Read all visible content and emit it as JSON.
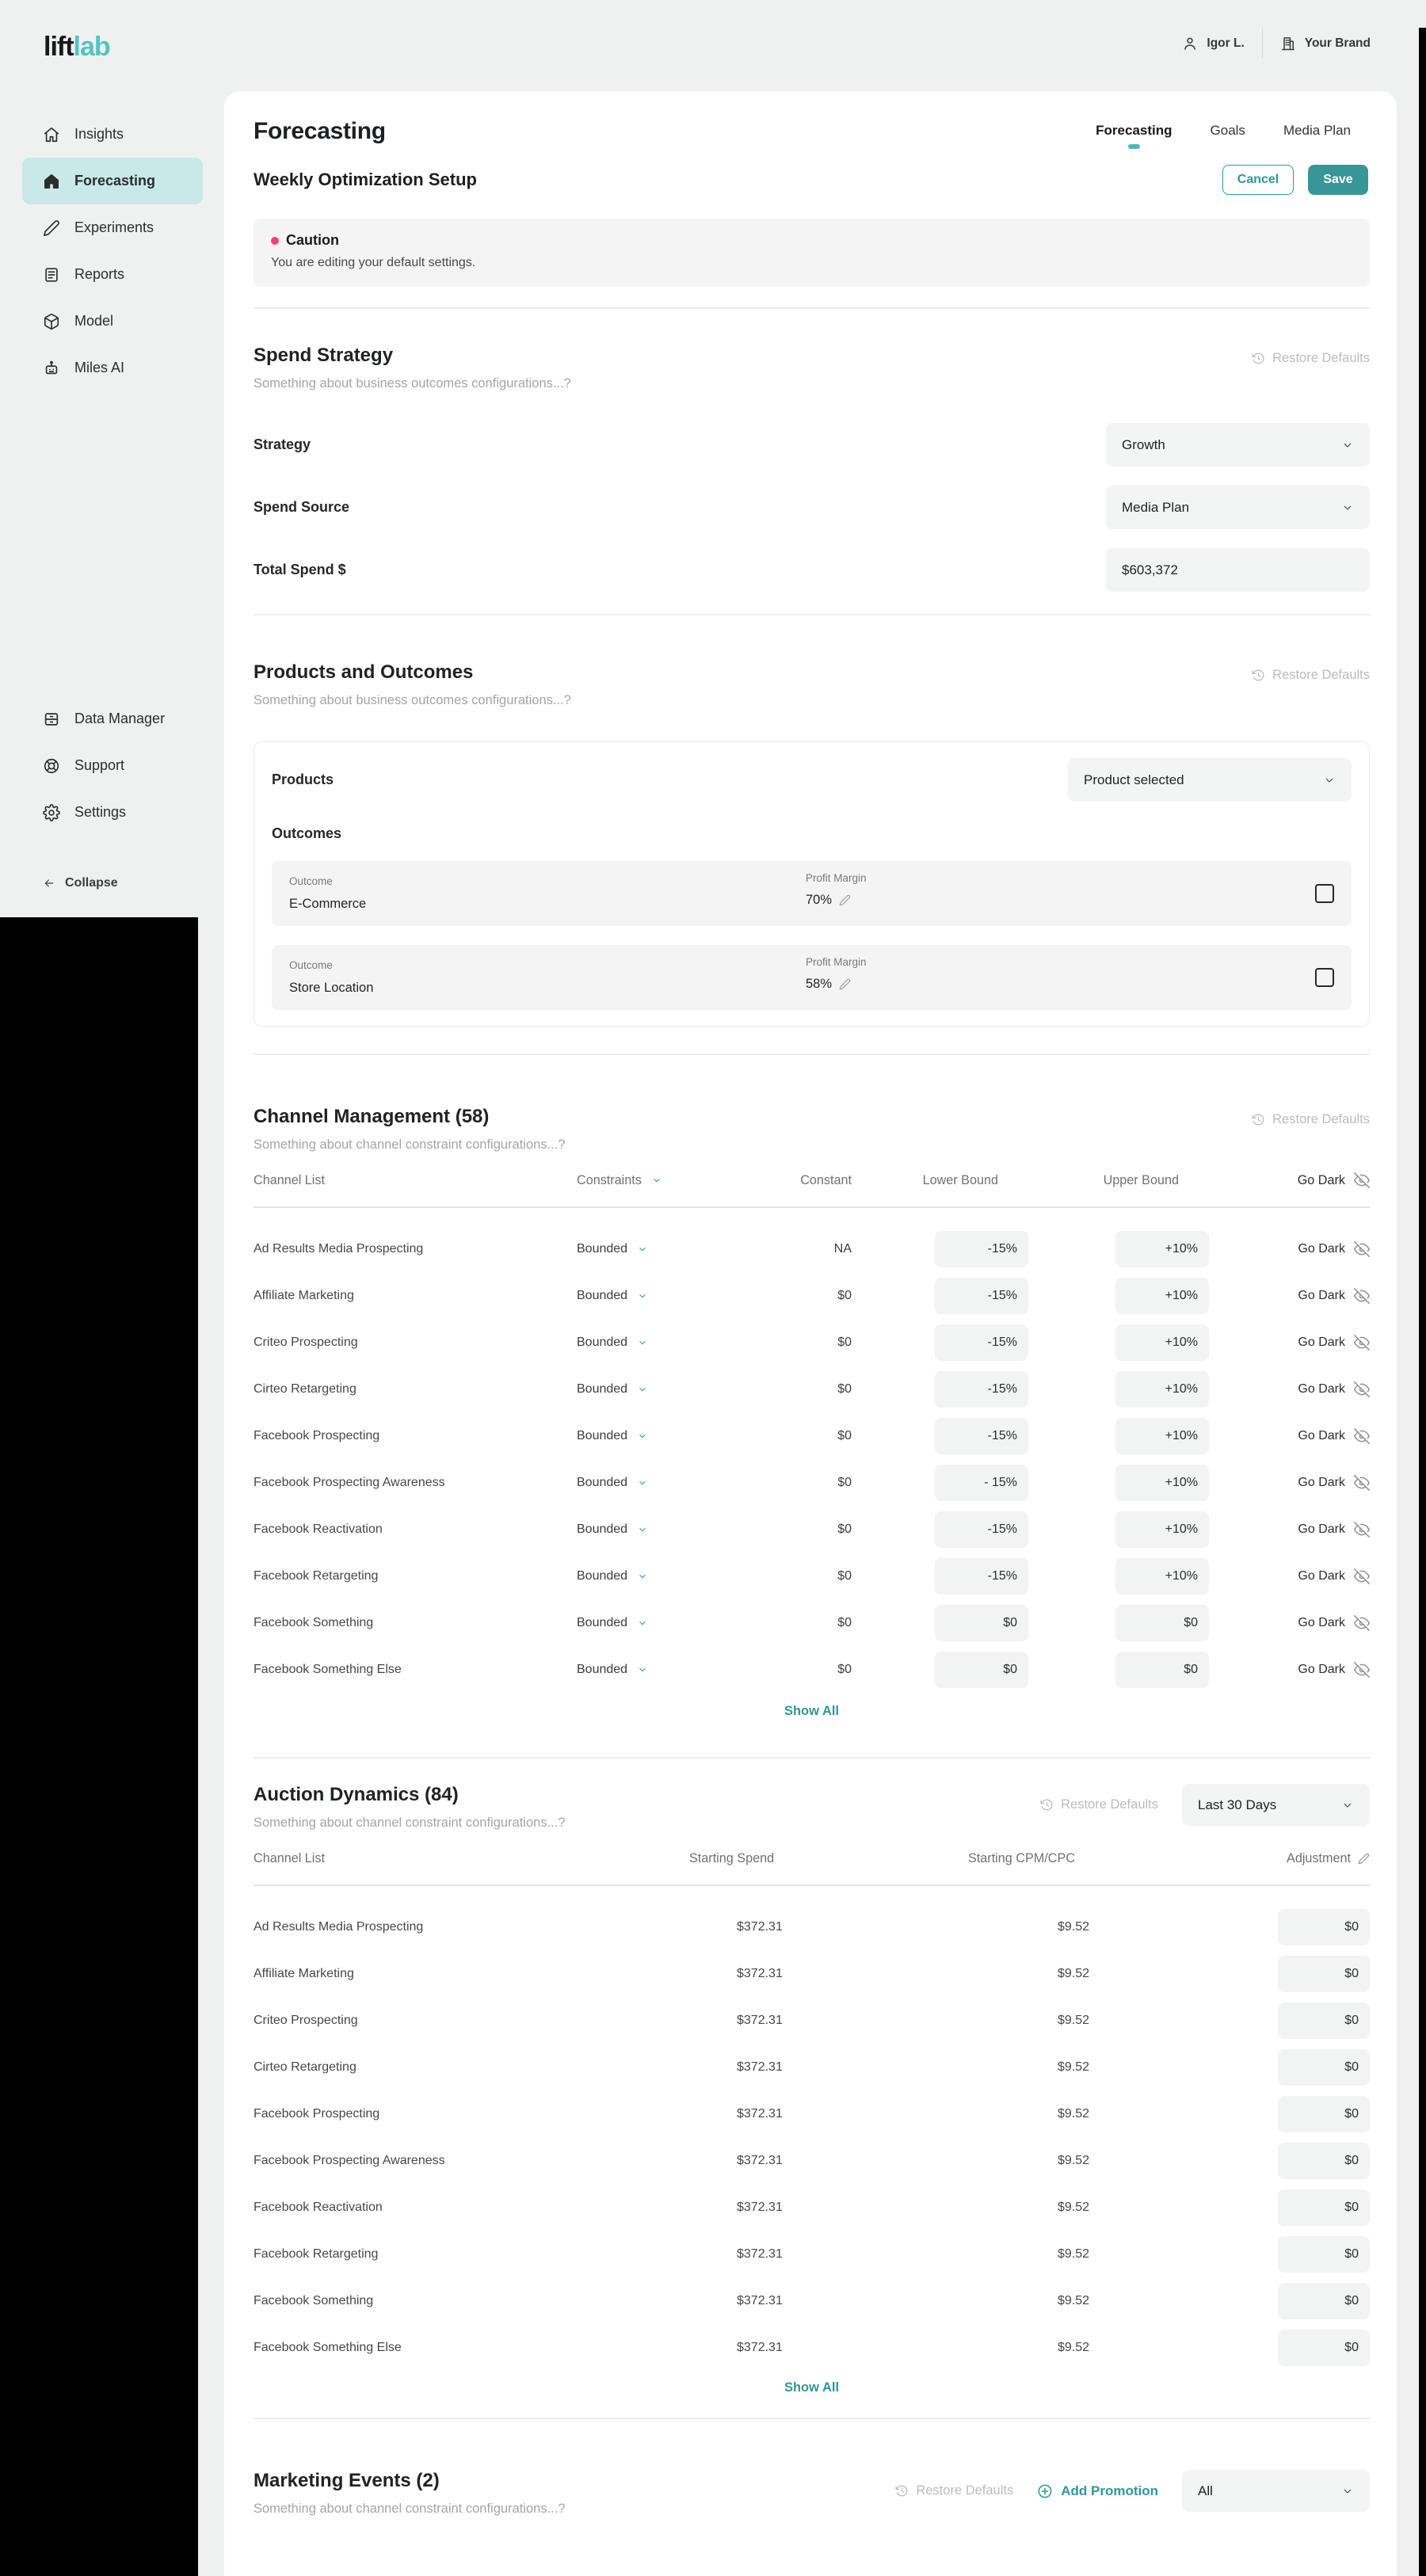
{
  "logo": {
    "part1": "lift",
    "part2": "lab"
  },
  "topbar": {
    "user_name": "Igor L.",
    "brand_name": "Your Brand"
  },
  "sidebar": {
    "items": [
      {
        "label": "Insights",
        "icon": "home-icon",
        "active": false
      },
      {
        "label": "Forecasting",
        "icon": "home-filled-icon",
        "active": true
      },
      {
        "label": "Experiments",
        "icon": "pencil-icon",
        "active": false
      },
      {
        "label": "Reports",
        "icon": "report-icon",
        "active": false
      },
      {
        "label": "Model",
        "icon": "box-icon",
        "active": false
      },
      {
        "label": "Miles AI",
        "icon": "robot-icon",
        "active": false
      }
    ],
    "footer_items": [
      {
        "label": "Data Manager",
        "icon": "archive-icon"
      },
      {
        "label": "Support",
        "icon": "lifebuoy-icon"
      },
      {
        "label": "Settings",
        "icon": "gear-icon"
      }
    ],
    "collapse_label": "Collapse"
  },
  "page": {
    "title": "Forecasting",
    "tabs": [
      {
        "label": "Forecasting",
        "active": true
      },
      {
        "label": "Goals",
        "active": false
      },
      {
        "label": "Media Plan",
        "active": false
      }
    ],
    "setup_title": "Weekly Optimization Setup",
    "cancel_label": "Cancel",
    "save_label": "Save",
    "caution_title": "Caution",
    "caution_message": "You are editing your default settings."
  },
  "spend_strategy": {
    "title": "Spend Strategy",
    "subtitle": "Something about business outcomes configurations...?",
    "restore_label": "Restore Defaults",
    "strategy_label": "Strategy",
    "strategy_value": "Growth",
    "source_label": "Spend Source",
    "source_value": "Media Plan",
    "total_label": "Total Spend $",
    "total_value": "$603,372"
  },
  "products": {
    "title": "Products and Outcomes",
    "subtitle": "Something about business outcomes configurations...?",
    "restore_label": "Restore Defaults",
    "products_label": "Products",
    "product_select_value": "Product selected",
    "outcomes_label": "Outcomes",
    "outcome_field_label": "Outcome",
    "margin_field_label": "Profit Margin",
    "outcomes": [
      {
        "name": "E-Commerce",
        "margin": "70%"
      },
      {
        "name": "Store Location",
        "margin": "58%"
      }
    ]
  },
  "channels": {
    "title": "Channel Management (58)",
    "subtitle": "Something about channel constraint configurations...?",
    "restore_label": "Restore Defaults",
    "show_all_label": "Show All",
    "headers": {
      "channel": "Channel List",
      "constraints": "Constraints",
      "constant": "Constant",
      "lower": "Lower Bound",
      "upper": "Upper Bound",
      "go_dark": "Go Dark"
    },
    "rows": [
      {
        "channel": "Ad Results Media Prospecting",
        "constraint": "Bounded",
        "constant": "NA",
        "lower": "-15%",
        "upper": "+10%",
        "go_dark": "Go Dark"
      },
      {
        "channel": "Affiliate Marketing",
        "constraint": "Bounded",
        "constant": "$0",
        "lower": "-15%",
        "upper": "+10%",
        "go_dark": "Go Dark"
      },
      {
        "channel": "Criteo Prospecting",
        "constraint": "Bounded",
        "constant": "$0",
        "lower": "-15%",
        "upper": "+10%",
        "go_dark": "Go Dark"
      },
      {
        "channel": "Cirteo Retargeting",
        "constraint": "Bounded",
        "constant": "$0",
        "lower": "-15%",
        "upper": "+10%",
        "go_dark": "Go Dark"
      },
      {
        "channel": "Facebook Prospecting",
        "constraint": "Bounded",
        "constant": "$0",
        "lower": "-15%",
        "upper": "+10%",
        "go_dark": "Go Dark"
      },
      {
        "channel": "Facebook Prospecting Awareness",
        "constraint": "Bounded",
        "constant": "$0",
        "lower": "- 15%",
        "upper": "+10%",
        "go_dark": "Go Dark"
      },
      {
        "channel": "Facebook Reactivation",
        "constraint": "Bounded",
        "constant": "$0",
        "lower": "-15%",
        "upper": "+10%",
        "go_dark": "Go Dark"
      },
      {
        "channel": "Facebook Retargeting",
        "constraint": "Bounded",
        "constant": "$0",
        "lower": "-15%",
        "upper": "+10%",
        "go_dark": "Go Dark"
      },
      {
        "channel": "Facebook Something",
        "constraint": "Bounded",
        "constant": "$0",
        "lower": "$0",
        "upper": "$0",
        "go_dark": "Go Dark"
      },
      {
        "channel": "Facebook Something Else",
        "constraint": "Bounded",
        "constant": "$0",
        "lower": "$0",
        "upper": "$0",
        "go_dark": "Go Dark"
      }
    ]
  },
  "auction": {
    "title": "Auction Dynamics (84)",
    "subtitle": "Something about channel constraint configurations...?",
    "restore_label": "Restore Defaults",
    "period_value": "Last 30 Days",
    "show_all_label": "Show All",
    "headers": {
      "channel": "Channel List",
      "spend": "Starting Spend",
      "cpm": "Starting CPM/CPC",
      "adjustment": "Adjustment"
    },
    "rows": [
      {
        "channel": "Ad Results Media Prospecting",
        "spend": "$372.31",
        "cpm": "$9.52",
        "adjustment": "$0"
      },
      {
        "channel": "Affiliate Marketing",
        "spend": "$372.31",
        "cpm": "$9.52",
        "adjustment": "$0"
      },
      {
        "channel": "Criteo Prospecting",
        "spend": "$372.31",
        "cpm": "$9.52",
        "adjustment": "$0"
      },
      {
        "channel": "Cirteo Retargeting",
        "spend": "$372.31",
        "cpm": "$9.52",
        "adjustment": "$0"
      },
      {
        "channel": "Facebook Prospecting",
        "spend": "$372.31",
        "cpm": "$9.52",
        "adjustment": "$0"
      },
      {
        "channel": "Facebook Prospecting Awareness",
        "spend": "$372.31",
        "cpm": "$9.52",
        "adjustment": "$0"
      },
      {
        "channel": "Facebook Reactivation",
        "spend": "$372.31",
        "cpm": "$9.52",
        "adjustment": "$0"
      },
      {
        "channel": "Facebook Retargeting",
        "spend": "$372.31",
        "cpm": "$9.52",
        "adjustment": "$0"
      },
      {
        "channel": "Facebook Something",
        "spend": "$372.31",
        "cpm": "$9.52",
        "adjustment": "$0"
      },
      {
        "channel": "Facebook Something Else",
        "spend": "$372.31",
        "cpm": "$9.52",
        "adjustment": "$0"
      }
    ]
  },
  "events": {
    "title": "Marketing Events (2)",
    "subtitle": "Something about channel constraint configurations...?",
    "restore_label": "Restore Defaults",
    "add_label": "Add Promotion",
    "filter_value": "All"
  },
  "colors": {
    "accent": "#2f9899",
    "accent_light": "#54c3c4",
    "active_item_bg": "#c9e9e9",
    "caution_dot": "#f4436c",
    "panel_bg": "#eff1f1",
    "pill_bg": "#f2f3f3"
  }
}
